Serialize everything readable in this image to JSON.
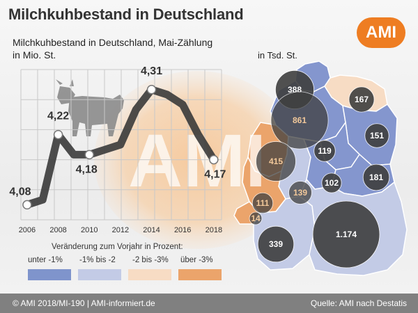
{
  "header": {
    "title": "Milchkuhbestand in Deutschland",
    "logo_text": "AMI"
  },
  "chart_data": [
    {
      "type": "line",
      "title": "Milchkuhbestand in Deutschland, Mai-Zählung",
      "ylabel": "in Mio. St.",
      "x": [
        2006,
        2008,
        2010,
        2012,
        2014,
        2016,
        2018
      ],
      "xtick_labels": [
        "2006",
        "2008",
        "2010",
        "2012",
        "2014",
        "2016",
        "2018"
      ],
      "points": [
        {
          "year": 2006,
          "value": 4.08,
          "label": "4,08"
        },
        {
          "year": 2007,
          "value": 4.09,
          "label": ""
        },
        {
          "year": 2008,
          "value": 4.22,
          "label": "4,22"
        },
        {
          "year": 2009,
          "value": 4.18,
          "label": ""
        },
        {
          "year": 2010,
          "value": 4.18,
          "label": "4,18"
        },
        {
          "year": 2011,
          "value": 4.19,
          "label": ""
        },
        {
          "year": 2012,
          "value": 4.2,
          "label": ""
        },
        {
          "year": 2013,
          "value": 4.27,
          "label": ""
        },
        {
          "year": 2014,
          "value": 4.31,
          "label": "4,31"
        },
        {
          "year": 2015,
          "value": 4.3,
          "label": ""
        },
        {
          "year": 2016,
          "value": 4.28,
          "label": ""
        },
        {
          "year": 2017,
          "value": 4.22,
          "label": ""
        },
        {
          "year": 2018,
          "value": 4.17,
          "label": "4,17"
        }
      ],
      "ylim": [
        4.05,
        4.35
      ],
      "grid": true,
      "line_color": "#3a3a3a"
    },
    {
      "type": "map",
      "unit": "in Tsd. St.",
      "bubbles": [
        {
          "label": "388",
          "value": 388
        },
        {
          "label": "167",
          "value": 167
        },
        {
          "label": "861",
          "value": 861
        },
        {
          "label": "151",
          "value": 151
        },
        {
          "label": "119",
          "value": 119
        },
        {
          "label": "415",
          "value": 415
        },
        {
          "label": "181",
          "value": 181
        },
        {
          "label": "102",
          "value": 102
        },
        {
          "label": "139",
          "value": 139
        },
        {
          "label": "111",
          "value": 111
        },
        {
          "label": "14",
          "value": 14
        },
        {
          "label": "339",
          "value": 339
        },
        {
          "label": "1.174",
          "value": 1174
        }
      ],
      "bubble_color": "#3f3f3f",
      "bubble_text_color": "#ffffff",
      "highlight_text_color": "#f2c89a"
    }
  ],
  "legend": {
    "title": "Veränderung zum Vorjahr in Prozent:",
    "items": [
      {
        "label": "unter -1%",
        "color": "#7f94cc"
      },
      {
        "label": "-1% bis -2",
        "color": "#c3cbe6"
      },
      {
        "label": "-2 bis -3%",
        "color": "#f7dcc4"
      },
      {
        "label": "über -3%",
        "color": "#eba46b"
      }
    ]
  },
  "footer": {
    "left": "© AMI 2018/MI-190 | AMI-informiert.de",
    "right": "Quelle: AMI nach Destatis"
  }
}
